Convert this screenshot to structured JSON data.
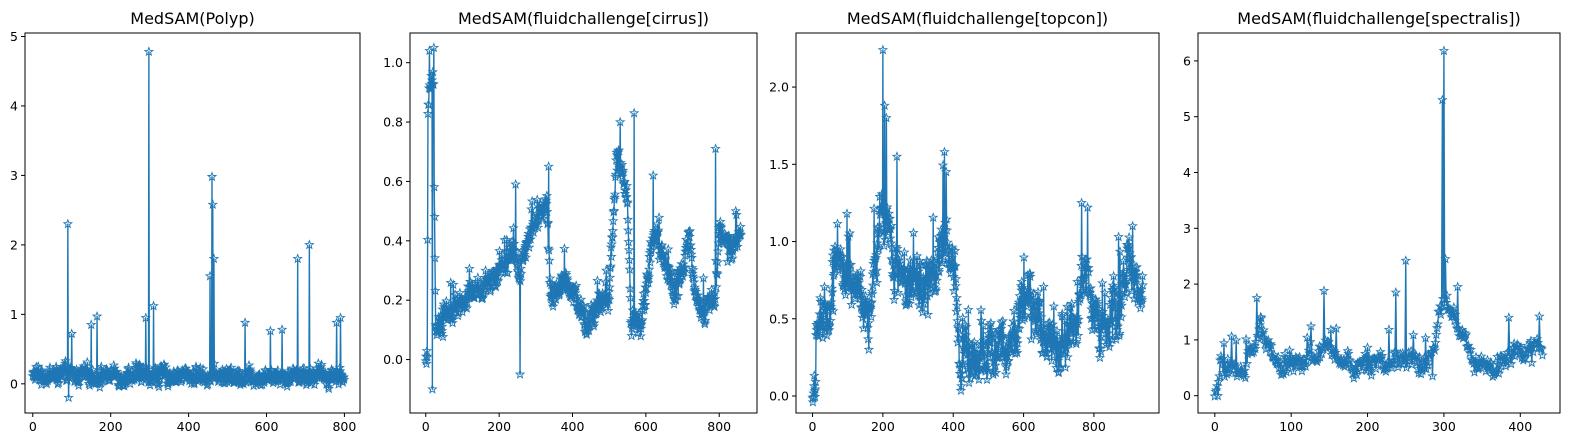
{
  "chart_data": [
    {
      "type": "line",
      "title": "MedSAM(Polyp)",
      "xlabel": "",
      "ylabel": "",
      "xlim": [
        -20,
        840
      ],
      "ylim": [
        -0.42,
        5.05
      ],
      "xticks": [
        0,
        200,
        400,
        600,
        800
      ],
      "yticks": [
        0,
        1,
        2,
        3,
        4,
        5
      ],
      "marker": "star",
      "color": "#1f77b4",
      "n_points": 800,
      "baseline": 0.12,
      "noise": 0.14,
      "spikes": [
        {
          "x": 90,
          "y": 2.3
        },
        {
          "x": 92,
          "y": -0.2
        },
        {
          "x": 100,
          "y": 0.72
        },
        {
          "x": 150,
          "y": 0.85
        },
        {
          "x": 165,
          "y": 0.97
        },
        {
          "x": 290,
          "y": 0.95
        },
        {
          "x": 298,
          "y": 4.78
        },
        {
          "x": 310,
          "y": 1.12
        },
        {
          "x": 455,
          "y": 1.55
        },
        {
          "x": 460,
          "y": 2.98
        },
        {
          "x": 462,
          "y": 2.58
        },
        {
          "x": 465,
          "y": 1.8
        },
        {
          "x": 545,
          "y": 0.88
        },
        {
          "x": 610,
          "y": 0.76
        },
        {
          "x": 640,
          "y": 0.78
        },
        {
          "x": 680,
          "y": 1.8
        },
        {
          "x": 710,
          "y": 2.0
        },
        {
          "x": 780,
          "y": 0.88
        },
        {
          "x": 790,
          "y": 0.95
        }
      ]
    },
    {
      "type": "line",
      "title": "MedSAM(fluidchallenge[cirrus])",
      "xlabel": "",
      "ylabel": "",
      "xlim": [
        -43,
        903
      ],
      "ylim": [
        -0.18,
        1.1
      ],
      "xticks": [
        0,
        200,
        400,
        600,
        800
      ],
      "yticks": [
        0.0,
        0.2,
        0.4,
        0.6,
        0.8,
        1.0
      ],
      "marker": "star",
      "color": "#1f77b4",
      "n_points": 860,
      "noise": 0.045,
      "baseline_points": [
        [
          0,
          0.0
        ],
        [
          4,
          0.02
        ],
        [
          6,
          0.85
        ],
        [
          20,
          0.95
        ],
        [
          27,
          0.12
        ],
        [
          100,
          0.18
        ],
        [
          180,
          0.27
        ],
        [
          230,
          0.35
        ],
        [
          255,
          0.3
        ],
        [
          280,
          0.4
        ],
        [
          330,
          0.55
        ],
        [
          340,
          0.22
        ],
        [
          380,
          0.27
        ],
        [
          440,
          0.12
        ],
        [
          500,
          0.22
        ],
        [
          520,
          0.68
        ],
        [
          550,
          0.55
        ],
        [
          560,
          0.12
        ],
        [
          590,
          0.12
        ],
        [
          620,
          0.45
        ],
        [
          680,
          0.22
        ],
        [
          720,
          0.4
        ],
        [
          740,
          0.18
        ],
        [
          790,
          0.2
        ],
        [
          800,
          0.45
        ],
        [
          830,
          0.35
        ],
        [
          860,
          0.45
        ]
      ],
      "spikes": [
        {
          "x": 10,
          "y": 1.04
        },
        {
          "x": 22,
          "y": 1.05
        },
        {
          "x": 18,
          "y": -0.1
        },
        {
          "x": 257,
          "y": -0.05
        },
        {
          "x": 245,
          "y": 0.59
        },
        {
          "x": 335,
          "y": 0.65
        },
        {
          "x": 530,
          "y": 0.8
        },
        {
          "x": 568,
          "y": 0.83
        },
        {
          "x": 620,
          "y": 0.62
        },
        {
          "x": 790,
          "y": 0.71
        },
        {
          "x": 845,
          "y": 0.5
        }
      ]
    },
    {
      "type": "line",
      "title": "MedSAM(fluidchallenge[topcon])",
      "xlabel": "",
      "ylabel": "",
      "xlim": [
        -47,
        985
      ],
      "ylim": [
        -0.11,
        2.35
      ],
      "xticks": [
        0,
        200,
        400,
        600,
        800
      ],
      "yticks": [
        0.0,
        0.5,
        1.0,
        1.5,
        2.0
      ],
      "marker": "star",
      "color": "#1f77b4",
      "n_points": 940,
      "noise": 0.18,
      "baseline_points": [
        [
          0,
          0.0
        ],
        [
          8,
          0.0
        ],
        [
          10,
          0.42
        ],
        [
          50,
          0.55
        ],
        [
          70,
          1.0
        ],
        [
          100,
          0.7
        ],
        [
          160,
          0.55
        ],
        [
          200,
          1.2
        ],
        [
          240,
          0.8
        ],
        [
          300,
          0.7
        ],
        [
          350,
          0.75
        ],
        [
          380,
          1.1
        ],
        [
          410,
          0.65
        ],
        [
          420,
          0.2
        ],
        [
          500,
          0.3
        ],
        [
          560,
          0.35
        ],
        [
          610,
          0.65
        ],
        [
          660,
          0.35
        ],
        [
          740,
          0.35
        ],
        [
          770,
          0.85
        ],
        [
          800,
          0.55
        ],
        [
          830,
          0.4
        ],
        [
          870,
          0.55
        ],
        [
          900,
          0.85
        ],
        [
          930,
          0.7
        ]
      ],
      "spikes": [
        {
          "x": 200,
          "y": 2.24
        },
        {
          "x": 205,
          "y": 1.88
        },
        {
          "x": 210,
          "y": 1.8
        },
        {
          "x": 240,
          "y": 1.55
        },
        {
          "x": 375,
          "y": 1.58
        },
        {
          "x": 380,
          "y": 1.45
        },
        {
          "x": 765,
          "y": 1.25
        },
        {
          "x": 782,
          "y": 1.22
        },
        {
          "x": 910,
          "y": 1.1
        },
        {
          "x": 870,
          "y": 1.03
        },
        {
          "x": 160,
          "y": 0.3
        }
      ]
    },
    {
      "type": "line",
      "title": "MedSAM(fluidchallenge[spectralis])",
      "xlabel": "",
      "ylabel": "",
      "xlim": [
        -22,
        452
      ],
      "ylim": [
        -0.31,
        6.5
      ],
      "xticks": [
        0,
        100,
        200,
        300,
        400
      ],
      "yticks": [
        0,
        1,
        2,
        3,
        4,
        5,
        6
      ],
      "marker": "star",
      "color": "#1f77b4",
      "n_points": 430,
      "noise": 0.22,
      "baseline_points": [
        [
          0,
          0.0
        ],
        [
          4,
          0.0
        ],
        [
          8,
          0.5
        ],
        [
          40,
          0.45
        ],
        [
          60,
          1.2
        ],
        [
          80,
          0.5
        ],
        [
          110,
          0.6
        ],
        [
          150,
          0.8
        ],
        [
          180,
          0.55
        ],
        [
          230,
          0.6
        ],
        [
          260,
          0.7
        ],
        [
          280,
          0.5
        ],
        [
          300,
          1.8
        ],
        [
          320,
          1.2
        ],
        [
          340,
          0.6
        ],
        [
          370,
          0.55
        ],
        [
          400,
          0.9
        ],
        [
          430,
          0.7
        ]
      ],
      "spikes": [
        {
          "x": 300,
          "y": 6.18
        },
        {
          "x": 298,
          "y": 5.3
        },
        {
          "x": 302,
          "y": 2.45
        },
        {
          "x": 250,
          "y": 2.42
        },
        {
          "x": 237,
          "y": 1.85
        },
        {
          "x": 143,
          "y": 1.88
        },
        {
          "x": 55,
          "y": 1.75
        },
        {
          "x": 318,
          "y": 1.95
        },
        {
          "x": 385,
          "y": 1.4
        },
        {
          "x": 425,
          "y": 1.42
        },
        {
          "x": 285,
          "y": 0.35
        }
      ]
    }
  ]
}
